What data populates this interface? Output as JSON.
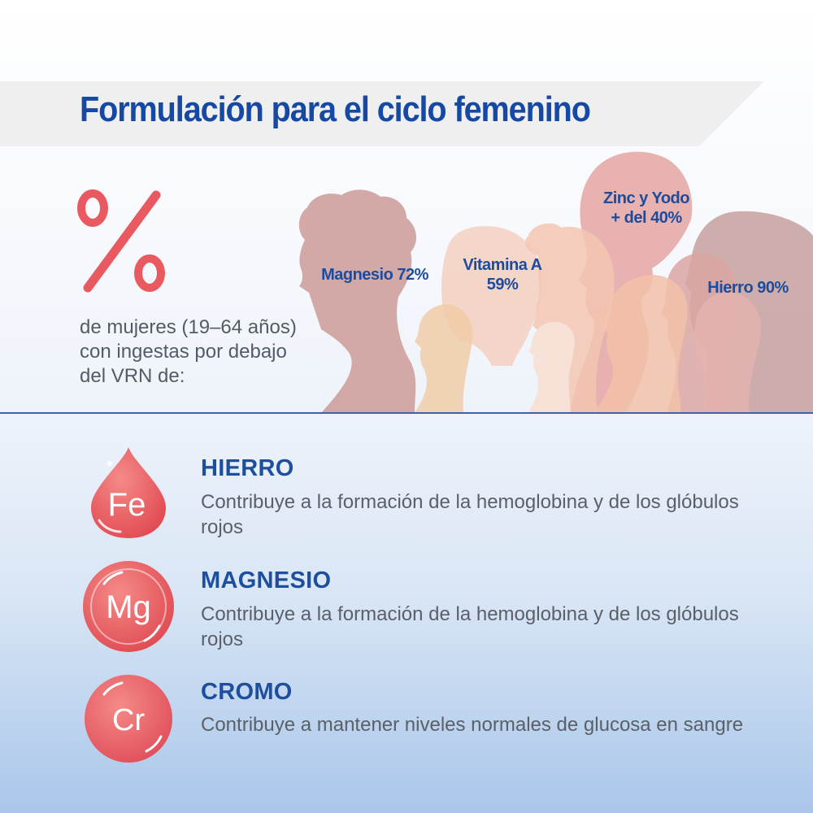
{
  "header": {
    "title": "Formulación para el ciclo femenino"
  },
  "percent_symbol": "%",
  "intro_text": "de mujeres (19–64 años) con ingestas por debajo del VRN de:",
  "stats": [
    {
      "lines": [
        "Magnesio 72%"
      ]
    },
    {
      "lines": [
        "Vitamina A",
        "59%"
      ]
    },
    {
      "lines": [
        "Zinc y Yodo",
        "+ del 40%"
      ]
    },
    {
      "lines": [
        "Hierro 90%"
      ]
    }
  ],
  "nutrients": [
    {
      "symbol": "Fe",
      "title": "HIERRO",
      "description": "Contribuye a la formación de la hemoglobina y de los glóbulos rojos",
      "icon": "blood-drop-icon"
    },
    {
      "symbol": "Mg",
      "title": "MAGNESIO",
      "description": "Contribuye a la formación de la hemoglobina y de los glóbulos rojos",
      "icon": "magnesium-orb-icon"
    },
    {
      "symbol": "Cr",
      "title": "CROMO",
      "description": "Contribuye a mantener niveles normales de glucosa en sangre",
      "icon": "chromium-orb-icon"
    }
  ],
  "colors": {
    "title_blue": "#1649a3",
    "accent_red": "#e85a5f",
    "text_gray": "#555b66",
    "band_gray": "#efefef"
  }
}
